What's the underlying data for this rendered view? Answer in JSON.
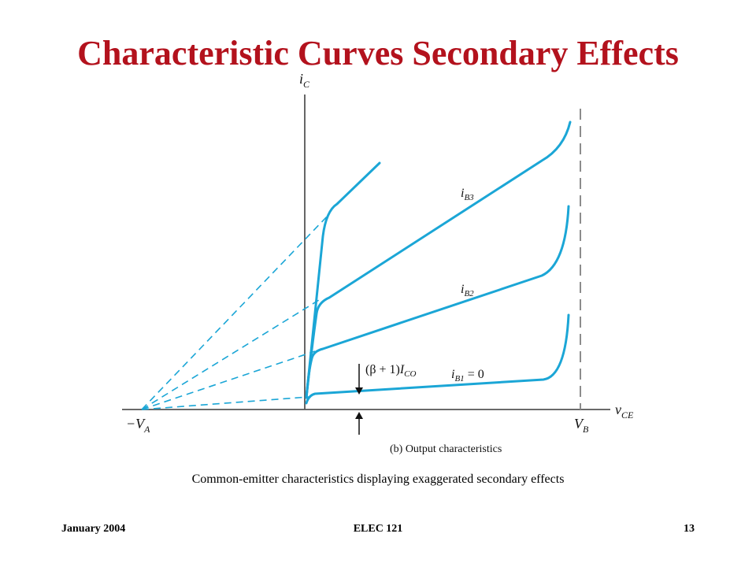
{
  "title": "Characteristic Curves Secondary Effects",
  "colors": {
    "title": "#b3121d",
    "curve": "#1ba6d6",
    "axis": "#555555",
    "dashed_vb": "#8c8c8c"
  },
  "diagram": {
    "y_axis_label": "i",
    "y_axis_sub": "C",
    "x_axis_label": "v",
    "x_axis_sub": "CE",
    "neg_va_label": "−V",
    "neg_va_sub": "A",
    "vb_label": "V",
    "vb_sub": "B",
    "ib3_label": "i",
    "ib3_sub": "B3",
    "ib2_label": "i",
    "ib2_sub": "B2",
    "ib1_label": "i",
    "ib1_sub": "B1",
    "ib1_value": " = 0",
    "ico_label_prefix": "(β + 1)",
    "ico_label": "I",
    "ico_sub": "CO",
    "figure_caption": "(b) Output characteristics"
  },
  "caption": "Common-emitter characteristics displaying exaggerated secondary effects",
  "footer": {
    "date": "January 2004",
    "course": "ELEC 121",
    "page": "13"
  }
}
